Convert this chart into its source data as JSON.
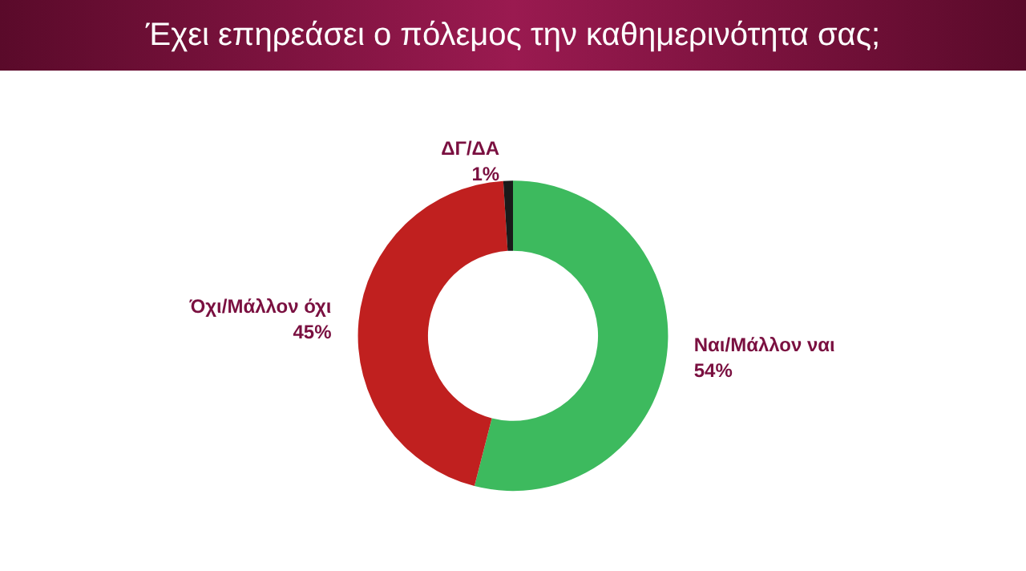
{
  "chart_data": {
    "type": "donut",
    "title": "Έχει επηρεάσει ο πόλεμος την καθημερινότητα σας;",
    "categories": [
      "Ναι/Μάλλον ναι",
      "Όχι/Μάλλον όχι",
      "ΔΓ/ΔΑ"
    ],
    "values": [
      54,
      45,
      1
    ],
    "colors": [
      "#3dba5e",
      "#c0201f",
      "#1a1a1a"
    ],
    "value_labels": [
      "54%",
      "45%",
      "1%"
    ],
    "legend": false
  }
}
